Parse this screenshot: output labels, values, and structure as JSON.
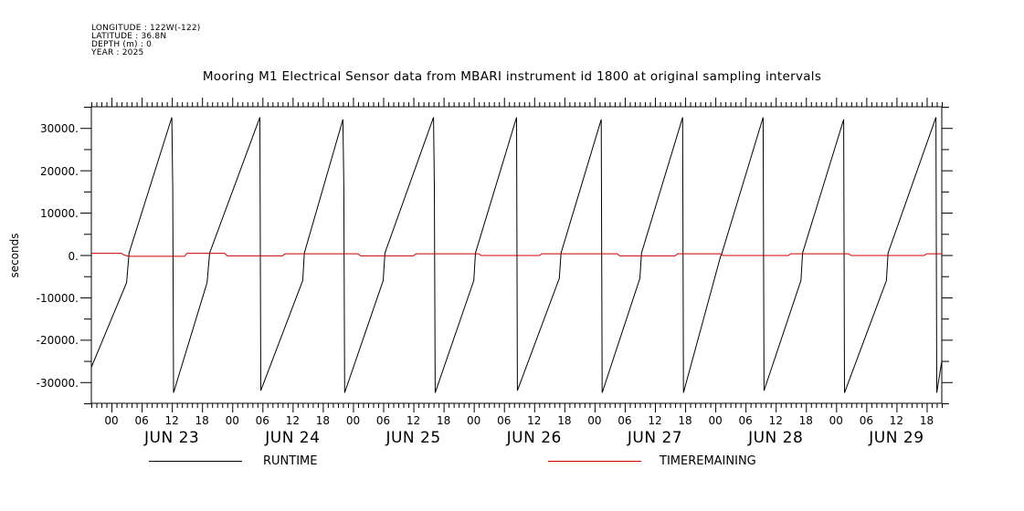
{
  "header": {
    "longitude": "LONGITUDE : 122W(-122)",
    "latitude": "LATITUDE : 36.8N",
    "depth": "DEPTH (m) : 0",
    "year": "YEAR : 2025"
  },
  "chart_data": {
    "type": "line",
    "title": "Mooring M1 Electrical Sensor data from MBARI instrument id 1800 at original sampling intervals",
    "ylabel": "seconds",
    "xlabel": "",
    "ylim": [
      -35000,
      35000
    ],
    "xlim_hours": [
      "2025-06-22T20:00",
      "2025-06-29T21:00"
    ],
    "y_tick_labels": [
      {
        "value": 30000,
        "label": "30000."
      },
      {
        "value": 20000,
        "label": "20000."
      },
      {
        "value": 10000,
        "label": "10000."
      },
      {
        "value": 0,
        "label": "0."
      },
      {
        "value": -10000,
        "label": "-10000."
      },
      {
        "value": -20000,
        "label": "-20000."
      },
      {
        "value": -30000,
        "label": "-30000."
      }
    ],
    "x_hour_ticks": [
      {
        "t": "2025-06-23T00:00",
        "label": "00"
      },
      {
        "t": "2025-06-23T06:00",
        "label": "06"
      },
      {
        "t": "2025-06-23T12:00",
        "label": "12"
      },
      {
        "t": "2025-06-23T18:00",
        "label": "18"
      },
      {
        "t": "2025-06-24T00:00",
        "label": "00"
      },
      {
        "t": "2025-06-24T06:00",
        "label": "06"
      },
      {
        "t": "2025-06-24T12:00",
        "label": "12"
      },
      {
        "t": "2025-06-24T18:00",
        "label": "18"
      },
      {
        "t": "2025-06-25T00:00",
        "label": "00"
      },
      {
        "t": "2025-06-25T06:00",
        "label": "06"
      },
      {
        "t": "2025-06-25T12:00",
        "label": "12"
      },
      {
        "t": "2025-06-25T18:00",
        "label": "18"
      },
      {
        "t": "2025-06-26T00:00",
        "label": "00"
      },
      {
        "t": "2025-06-26T06:00",
        "label": "06"
      },
      {
        "t": "2025-06-26T12:00",
        "label": "12"
      },
      {
        "t": "2025-06-26T18:00",
        "label": "18"
      },
      {
        "t": "2025-06-27T00:00",
        "label": "00"
      },
      {
        "t": "2025-06-27T06:00",
        "label": "06"
      },
      {
        "t": "2025-06-27T12:00",
        "label": "12"
      },
      {
        "t": "2025-06-27T18:00",
        "label": "18"
      },
      {
        "t": "2025-06-28T00:00",
        "label": "00"
      },
      {
        "t": "2025-06-28T06:00",
        "label": "06"
      },
      {
        "t": "2025-06-28T12:00",
        "label": "12"
      },
      {
        "t": "2025-06-28T18:00",
        "label": "18"
      },
      {
        "t": "2025-06-29T00:00",
        "label": "00"
      },
      {
        "t": "2025-06-29T06:00",
        "label": "06"
      },
      {
        "t": "2025-06-29T12:00",
        "label": "12"
      },
      {
        "t": "2025-06-29T18:00",
        "label": "18"
      }
    ],
    "x_day_labels": [
      {
        "t": "2025-06-23T12:00",
        "label": "JUN 23"
      },
      {
        "t": "2025-06-24T12:00",
        "label": "JUN 24"
      },
      {
        "t": "2025-06-25T12:00",
        "label": "JUN 25"
      },
      {
        "t": "2025-06-26T12:00",
        "label": "JUN 26"
      },
      {
        "t": "2025-06-27T12:00",
        "label": "JUN 27"
      },
      {
        "t": "2025-06-28T12:00",
        "label": "JUN 28"
      },
      {
        "t": "2025-06-29T12:00",
        "label": "JUN 29"
      }
    ],
    "series": [
      {
        "name": "RUNTIME",
        "color": "#000000",
        "points": [
          [
            "2025-06-22T20:00",
            -26500
          ],
          [
            "2025-06-23T03:00",
            -6500
          ],
          [
            "2025-06-23T03:30",
            500
          ],
          [
            "2025-06-23T12:00",
            32500
          ],
          [
            "2025-06-23T12:10",
            16000
          ],
          [
            "2025-06-23T12:20",
            -32500
          ],
          [
            "2025-06-23T19:00",
            -6500
          ],
          [
            "2025-06-23T19:30",
            500
          ],
          [
            "2025-06-24T05:30",
            32500
          ],
          [
            "2025-06-24T05:40",
            -32000
          ],
          [
            "2025-06-24T14:00",
            -6000
          ],
          [
            "2025-06-24T14:20",
            500
          ],
          [
            "2025-06-24T22:00",
            32000
          ],
          [
            "2025-06-24T22:10",
            16000
          ],
          [
            "2025-06-24T22:20",
            -32500
          ],
          [
            "2025-06-25T06:00",
            -6000
          ],
          [
            "2025-06-25T06:20",
            500
          ],
          [
            "2025-06-25T16:00",
            32500
          ],
          [
            "2025-06-25T16:10",
            16000
          ],
          [
            "2025-06-25T16:20",
            -32500
          ],
          [
            "2025-06-26T00:00",
            -6000
          ],
          [
            "2025-06-26T00:20",
            500
          ],
          [
            "2025-06-26T08:30",
            32500
          ],
          [
            "2025-06-26T08:40",
            -32000
          ],
          [
            "2025-06-26T17:00",
            -5500
          ],
          [
            "2025-06-26T17:20",
            500
          ],
          [
            "2025-06-27T01:20",
            32000
          ],
          [
            "2025-06-27T01:30",
            -32500
          ],
          [
            "2025-06-27T09:00",
            -5500
          ],
          [
            "2025-06-27T09:20",
            500
          ],
          [
            "2025-06-27T17:30",
            32500
          ],
          [
            "2025-06-27T17:40",
            -32500
          ],
          [
            "2025-06-28T01:00",
            -500
          ],
          [
            "2025-06-28T01:20",
            500
          ],
          [
            "2025-06-28T09:30",
            32500
          ],
          [
            "2025-06-28T09:40",
            -32000
          ],
          [
            "2025-06-28T17:00",
            -6000
          ],
          [
            "2025-06-28T17:20",
            500
          ],
          [
            "2025-06-29T01:30",
            32000
          ],
          [
            "2025-06-29T01:40",
            -32500
          ],
          [
            "2025-06-29T10:00",
            -6000
          ],
          [
            "2025-06-29T10:20",
            500
          ],
          [
            "2025-06-29T19:50",
            32500
          ],
          [
            "2025-06-29T20:00",
            -32500
          ],
          [
            "2025-06-29T21:00",
            -25000
          ]
        ]
      },
      {
        "name": "TIMEREMAINING",
        "color": "#cc0000",
        "points": [
          [
            "2025-06-22T20:00",
            400
          ],
          [
            "2025-06-23T02:00",
            400
          ],
          [
            "2025-06-23T02:30",
            0
          ],
          [
            "2025-06-23T03:30",
            -300
          ],
          [
            "2025-06-23T14:30",
            -300
          ],
          [
            "2025-06-23T15:00",
            400
          ],
          [
            "2025-06-23T22:30",
            400
          ],
          [
            "2025-06-23T23:00",
            -200
          ],
          [
            "2025-06-24T10:00",
            -200
          ],
          [
            "2025-06-24T10:30",
            300
          ],
          [
            "2025-06-25T01:00",
            300
          ],
          [
            "2025-06-25T01:30",
            -200
          ],
          [
            "2025-06-25T12:00",
            -200
          ],
          [
            "2025-06-25T12:30",
            300
          ],
          [
            "2025-06-26T01:00",
            300
          ],
          [
            "2025-06-26T01:30",
            -100
          ],
          [
            "2025-06-26T13:00",
            -100
          ],
          [
            "2025-06-26T13:30",
            300
          ],
          [
            "2025-06-27T04:30",
            300
          ],
          [
            "2025-06-27T05:00",
            -200
          ],
          [
            "2025-06-27T16:00",
            -200
          ],
          [
            "2025-06-27T16:30",
            300
          ],
          [
            "2025-06-28T01:00",
            300
          ],
          [
            "2025-06-28T01:30",
            -100
          ],
          [
            "2025-06-28T14:30",
            -100
          ],
          [
            "2025-06-28T15:00",
            300
          ],
          [
            "2025-06-29T02:30",
            300
          ],
          [
            "2025-06-29T03:00",
            -100
          ],
          [
            "2025-06-29T17:30",
            -100
          ],
          [
            "2025-06-29T18:00",
            300
          ],
          [
            "2025-06-29T21:00",
            300
          ]
        ]
      }
    ],
    "grid": false,
    "legend_placement": "bottom"
  }
}
